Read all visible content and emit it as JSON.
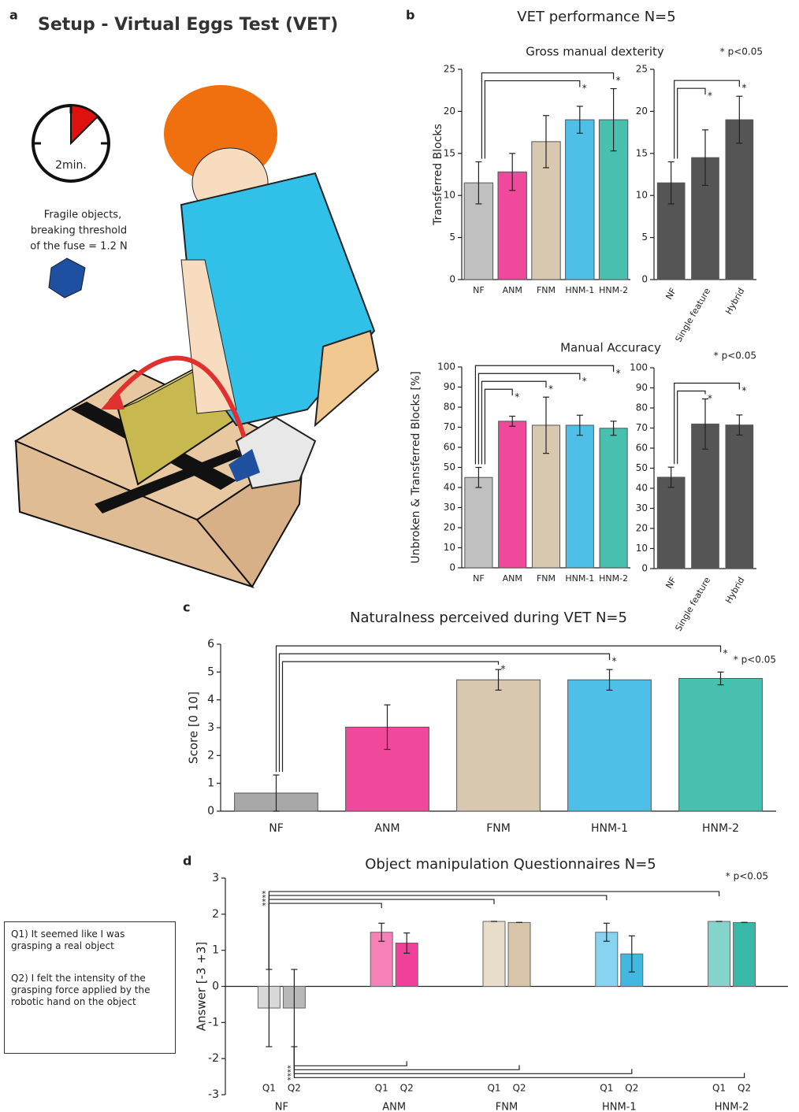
{
  "panel_labels": [
    "a",
    "b",
    "c",
    "d"
  ],
  "setup": {
    "title": "Setup - Virtual Eggs Test (VET)",
    "timer": "2min.",
    "note": [
      "Fragile objects,",
      "breaking threshold",
      "of the fuse = 1.2 N"
    ]
  },
  "panel_b_title": "VET performance N=5",
  "questionnaire_notes": [
    "Q1) It seemed like I was grasping a real object",
    "Q2) I felt the intensity of the grasping force applied by the robotic hand on the object"
  ],
  "chart_data": [
    {
      "type": "bar",
      "title": "Gross manual dexterity",
      "ylabel": "Transferred Blocks",
      "categories": [
        "NF",
        "ANM",
        "FNM",
        "HNM-1",
        "HNM-2"
      ],
      "values": [
        11.5,
        12.8,
        16.4,
        19,
        19
      ],
      "errors": [
        2.5,
        2.2,
        3.1,
        1.6,
        3.7
      ],
      "colors": [
        "#c0c0c0",
        "#f0489a",
        "#d8c8b0",
        "#4ec0e8",
        "#48c0b0"
      ],
      "ylim": [
        0,
        25
      ],
      "yticks": [
        0,
        5,
        10,
        15,
        20,
        25
      ],
      "significance": [
        {
          "pair": [
            "NF",
            "HNM-1"
          ],
          "label": "*"
        },
        {
          "pair": [
            "NF",
            "HNM-2"
          ],
          "label": "*"
        }
      ]
    },
    {
      "type": "bar",
      "annotation": "* p<0.05",
      "categories": [
        "NF",
        "Single feature",
        "Hybrid"
      ],
      "values": [
        11.5,
        14.5,
        19
      ],
      "errors": [
        2.5,
        3.3,
        2.8
      ],
      "colors": [
        "#555555",
        "#555555",
        "#555555"
      ],
      "ylim": [
        0,
        25
      ],
      "yticks": [
        0,
        5,
        10,
        15,
        20,
        25
      ],
      "significance": [
        {
          "pair": [
            "NF",
            "Single feature"
          ],
          "label": "*"
        },
        {
          "pair": [
            "NF",
            "Hybrid"
          ],
          "label": "*"
        }
      ]
    },
    {
      "type": "bar",
      "title": "Manual Accuracy",
      "ylabel": "Unbroken & Transferred Blocks [%]",
      "categories": [
        "NF",
        "ANM",
        "FNM",
        "HNM-1",
        "HNM-2"
      ],
      "values": [
        45,
        73,
        71,
        71,
        69.5
      ],
      "errors": [
        5,
        2.5,
        14,
        5,
        3.5
      ],
      "colors": [
        "#c0c0c0",
        "#f0489a",
        "#d8c8b0",
        "#4ec0e8",
        "#48c0b0"
      ],
      "ylim": [
        0,
        100
      ],
      "yticks": [
        0,
        10,
        20,
        30,
        40,
        50,
        60,
        70,
        80,
        90,
        100
      ],
      "significance": [
        {
          "pair": [
            "NF",
            "ANM"
          ],
          "label": "*"
        },
        {
          "pair": [
            "NF",
            "FNM"
          ],
          "label": "*"
        },
        {
          "pair": [
            "NF",
            "HNM-1"
          ],
          "label": "*"
        },
        {
          "pair": [
            "NF",
            "HNM-2"
          ],
          "label": "*"
        }
      ]
    },
    {
      "type": "bar",
      "annotation": "* p<0.05",
      "categories": [
        "NF",
        "Single feature",
        "Hybrid"
      ],
      "values": [
        45.5,
        72,
        71.5
      ],
      "errors": [
        5,
        12.5,
        5
      ],
      "colors": [
        "#555555",
        "#555555",
        "#555555"
      ],
      "ylim": [
        0,
        100
      ],
      "yticks": [
        0,
        10,
        20,
        30,
        40,
        50,
        60,
        70,
        80,
        90,
        100
      ],
      "significance": [
        {
          "pair": [
            "NF",
            "Single feature"
          ],
          "label": "*"
        },
        {
          "pair": [
            "NF",
            "Hybrid"
          ],
          "label": "*"
        }
      ]
    },
    {
      "type": "bar",
      "title": "Naturalness perceived during VET N=5",
      "annotation": "* p<0.05",
      "ylabel": "Score [0 10]",
      "categories": [
        "NF",
        "ANM",
        "FNM",
        "HNM-1",
        "HNM-2"
      ],
      "values": [
        0.65,
        3.02,
        4.72,
        4.72,
        4.77
      ],
      "errors": [
        0.65,
        0.8,
        0.37,
        0.37,
        0.23
      ],
      "colors": [
        "#a8a8a8",
        "#f0489a",
        "#d8c8b0",
        "#4ec0e8",
        "#48c0b0"
      ],
      "ylim": [
        0,
        6
      ],
      "yticks": [
        0,
        1,
        2,
        3,
        4,
        5,
        6
      ],
      "significance": [
        {
          "pair": [
            "NF",
            "FNM"
          ],
          "label": "*"
        },
        {
          "pair": [
            "NF",
            "HNM-1"
          ],
          "label": "*"
        },
        {
          "pair": [
            "NF",
            "HNM-2"
          ],
          "label": "*"
        }
      ]
    },
    {
      "type": "grouped_bar",
      "title": "Object manipulation Questionnaires N=5",
      "annotation": "* p<0.05",
      "ylabel": "Answer [-3 +3]",
      "categories": [
        "NF",
        "ANM",
        "FNM",
        "HNM-1",
        "HNM-2"
      ],
      "series": [
        {
          "name": "Q1",
          "colors": [
            "#d8d8d8",
            "#f880b8",
            "#e8dccb",
            "#88d4f0",
            "#84d4cc"
          ],
          "values": [
            -0.6,
            1.5,
            1.8,
            1.5,
            1.8
          ],
          "errors": [
            1.07,
            0.25,
            0,
            0.25,
            0
          ]
        },
        {
          "name": "Q2",
          "colors": [
            "#b8b8b8",
            "#f0409a",
            "#d8c4a8",
            "#40b8e0",
            "#38b8a8"
          ],
          "values": [
            -0.6,
            1.2,
            1.77,
            0.9,
            1.77
          ],
          "errors": [
            1.07,
            0.28,
            0,
            0.5,
            0
          ]
        }
      ],
      "ylim": [
        -3,
        3
      ],
      "yticks": [
        -3,
        -2,
        -1,
        0,
        1,
        2,
        3
      ],
      "significance": [
        {
          "series": "Q1",
          "pair": [
            "NF",
            "ANM"
          ],
          "label": "*"
        },
        {
          "series": "Q1",
          "pair": [
            "NF",
            "FNM"
          ],
          "label": "*"
        },
        {
          "series": "Q1",
          "pair": [
            "NF",
            "HNM-1"
          ],
          "label": "*"
        },
        {
          "series": "Q1",
          "pair": [
            "NF",
            "HNM-2"
          ],
          "label": "*"
        },
        {
          "series": "Q2",
          "pair": [
            "NF",
            "ANM"
          ],
          "label": "*"
        },
        {
          "series": "Q2",
          "pair": [
            "NF",
            "FNM"
          ],
          "label": "*"
        },
        {
          "series": "Q2",
          "pair": [
            "NF",
            "HNM-1"
          ],
          "label": "*"
        },
        {
          "series": "Q2",
          "pair": [
            "NF",
            "HNM-2"
          ],
          "label": "*"
        }
      ]
    }
  ]
}
